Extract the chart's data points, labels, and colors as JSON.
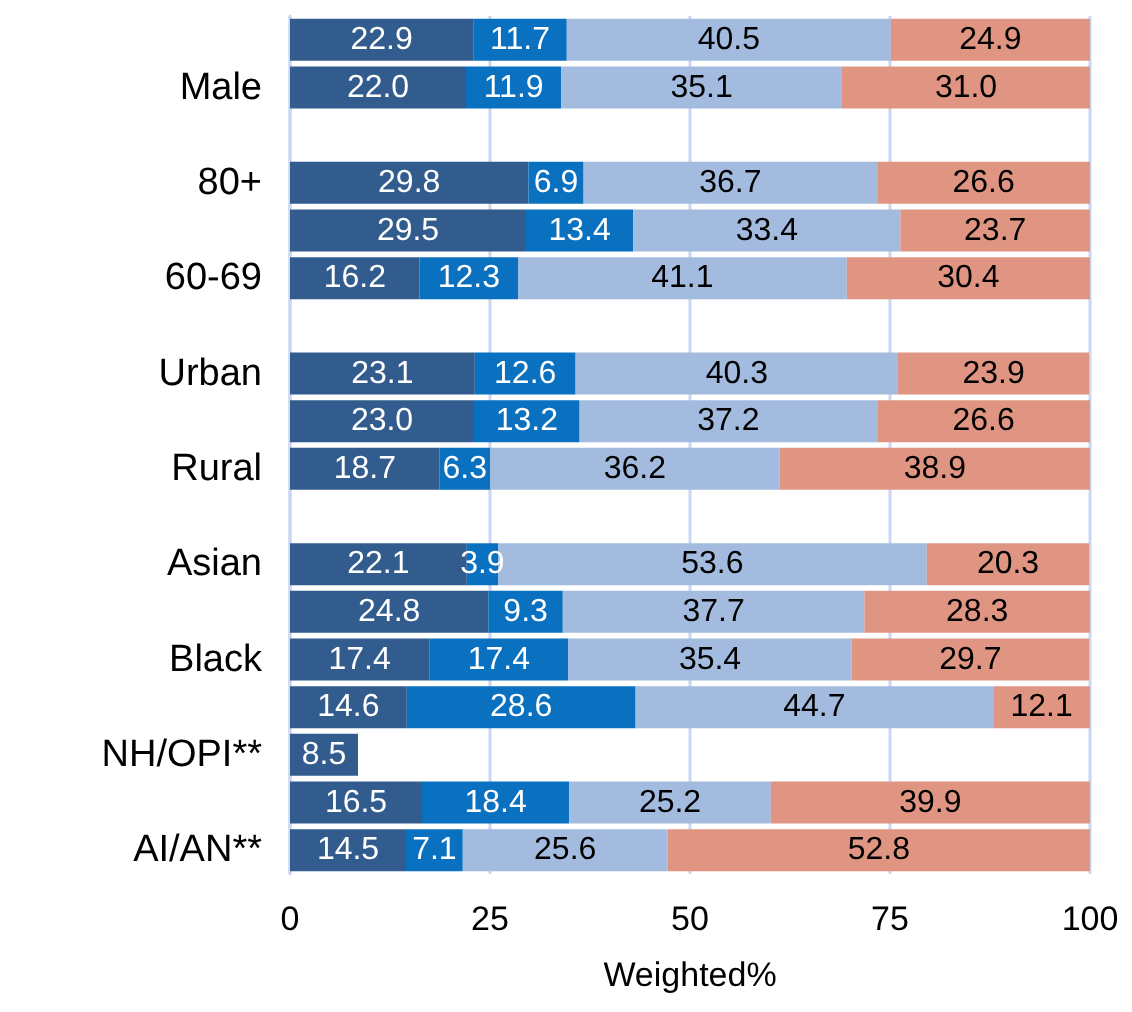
{
  "chart_data": {
    "type": "bar",
    "orientation": "horizontal",
    "stacked": true,
    "xlabel": "Weighted%",
    "categories": [
      null,
      "Male",
      null,
      "80+",
      null,
      "60-69",
      null,
      "Urban",
      null,
      "Rural",
      null,
      "Asian",
      null,
      "Black",
      null,
      "NH/OPI**",
      null,
      "AI/AN**"
    ],
    "series": [
      {
        "color": "#335c8e",
        "values": [
          22.9,
          22.0,
          null,
          29.8,
          29.5,
          16.2,
          null,
          23.1,
          23.0,
          18.7,
          null,
          22.1,
          24.8,
          17.4,
          14.6,
          8.5,
          16.5,
          14.5
        ],
        "value_labels": [
          "22.9",
          "22.0",
          null,
          "29.8",
          "29.5",
          "16.2",
          null,
          "23.1",
          "23.0",
          "18.7",
          null,
          "22.1",
          "24.8",
          "17.4",
          "14.6",
          "8.5",
          "16.5",
          "14.5"
        ]
      },
      {
        "color": "#0a70c0",
        "values": [
          11.7,
          11.9,
          null,
          6.9,
          13.4,
          12.3,
          null,
          12.6,
          13.2,
          6.3,
          null,
          3.9,
          9.3,
          17.4,
          28.6,
          null,
          18.4,
          7.1
        ],
        "value_labels": [
          "11.7",
          "11.9",
          null,
          "6.9",
          "13.4",
          "12.3",
          null,
          "12.6",
          "13.2",
          "6.3",
          null,
          "3.9",
          "9.3",
          "17.4",
          "28.6",
          null,
          "18.4",
          "7.1"
        ]
      },
      {
        "color": "#a2bbdf",
        "values": [
          40.5,
          35.1,
          null,
          36.7,
          33.4,
          41.1,
          null,
          40.3,
          37.2,
          36.2,
          null,
          53.6,
          37.7,
          35.4,
          44.7,
          null,
          25.2,
          25.6
        ],
        "value_labels": [
          "40.5",
          "35.1",
          null,
          "36.7",
          "33.4",
          "41.1",
          null,
          "40.3",
          "37.2",
          "36.2",
          null,
          "53.6",
          "37.7",
          "35.4",
          "44.7",
          null,
          "25.2",
          "25.6"
        ]
      },
      {
        "color": "#e09583",
        "values": [
          24.9,
          31.0,
          null,
          26.6,
          23.7,
          30.4,
          null,
          23.9,
          26.6,
          38.9,
          null,
          20.3,
          28.3,
          29.7,
          12.1,
          null,
          39.9,
          52.8
        ],
        "value_labels": [
          "24.9",
          "31.0",
          null,
          "26.6",
          "23.7",
          "30.4",
          null,
          "23.9",
          "26.6",
          "38.9",
          null,
          "20.3",
          "28.3",
          "29.7",
          "12.1",
          null,
          "39.9",
          "52.8"
        ]
      }
    ],
    "xlim": [
      0,
      100
    ],
    "xticks": [
      0,
      25,
      50,
      75,
      100
    ],
    "grid": "x"
  }
}
